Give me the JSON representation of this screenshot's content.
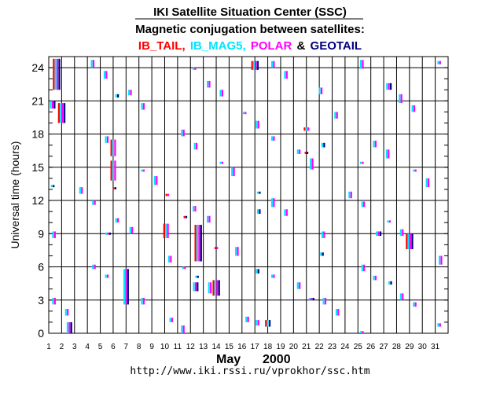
{
  "header": {
    "title": "IKI Satellite Situation Center (SSC)",
    "subtitle": "Magnetic conjugation between satellites:",
    "sat_red": "IB_TAIL,",
    "sat_cyan": "IB_MAG5,",
    "sat_magenta": "POLAR",
    "amp": "&",
    "sat_navy": "GEOTAIL"
  },
  "footer": {
    "month": "May",
    "year": "2000",
    "url": "http://www.iki.rssi.ru/vprokhor/ssc.htm"
  },
  "colors": {
    "IB_TAIL": "#ff0000",
    "IB_MAG5": "#00e5ff",
    "POLAR": "#ff00ff",
    "GEOTAIL": "#000080"
  },
  "chart_data": {
    "type": "scatter",
    "title": "Magnetic conjugation between satellites",
    "xlabel": "May 2000",
    "ylabel": "Universal time (hours)",
    "xlim": [
      1,
      32
    ],
    "ylim": [
      0,
      25
    ],
    "x_ticks": [
      1,
      2,
      3,
      4,
      5,
      6,
      7,
      8,
      9,
      10,
      11,
      12,
      13,
      14,
      15,
      16,
      17,
      18,
      19,
      20,
      21,
      22,
      23,
      24,
      25,
      26,
      27,
      28,
      29,
      30,
      31
    ],
    "y_ticks": [
      0,
      3,
      6,
      9,
      12,
      15,
      18,
      21,
      24
    ],
    "events": [
      {
        "day": 1.3,
        "start": 20.3,
        "end": 21.0,
        "sats": [
          "IB_MAG5",
          "POLAR",
          "GEOTAIL"
        ]
      },
      {
        "day": 1.4,
        "start": 8.6,
        "end": 9.2,
        "sats": [
          "IB_MAG5",
          "POLAR"
        ]
      },
      {
        "day": 1.4,
        "start": 2.6,
        "end": 3.2,
        "sats": [
          "IB_MAG5",
          "POLAR"
        ]
      },
      {
        "day": 1.3,
        "start": 13.2,
        "end": 13.4,
        "sats": [
          "IB_MAG5",
          "GEOTAIL"
        ]
      },
      {
        "day": 1.6,
        "start": 22.0,
        "end": 24.8,
        "sats": [
          "IB_TAIL",
          "IB_MAG5",
          "POLAR",
          "GEOTAIL"
        ]
      },
      {
        "day": 2.0,
        "start": 19.0,
        "end": 20.8,
        "sats": [
          "IB_TAIL",
          "IB_MAG5",
          "POLAR",
          "GEOTAIL"
        ]
      },
      {
        "day": 2.4,
        "start": 1.6,
        "end": 2.2,
        "sats": [
          "IB_MAG5",
          "POLAR"
        ]
      },
      {
        "day": 2.6,
        "start": 0.0,
        "end": 1.0,
        "sats": [
          "IB_MAG5",
          "POLAR",
          "GEOTAIL"
        ]
      },
      {
        "day": 3.5,
        "start": 12.6,
        "end": 13.2,
        "sats": [
          "IB_MAG5",
          "POLAR"
        ]
      },
      {
        "day": 4.4,
        "start": 24.0,
        "end": 24.7,
        "sats": [
          "IB_MAG5",
          "POLAR"
        ]
      },
      {
        "day": 4.5,
        "start": 11.6,
        "end": 12.0,
        "sats": [
          "IB_MAG5",
          "POLAR"
        ]
      },
      {
        "day": 4.5,
        "start": 5.8,
        "end": 6.2,
        "sats": [
          "IB_MAG5",
          "POLAR"
        ]
      },
      {
        "day": 5.4,
        "start": 23.0,
        "end": 23.7,
        "sats": [
          "IB_MAG5",
          "POLAR"
        ]
      },
      {
        "day": 5.5,
        "start": 17.2,
        "end": 17.8,
        "sats": [
          "IB_MAG5",
          "POLAR"
        ]
      },
      {
        "day": 5.6,
        "start": 8.9,
        "end": 9.1,
        "sats": [
          "IB_MAG5",
          "POLAR",
          "GEOTAIL"
        ]
      },
      {
        "day": 5.5,
        "start": 5.0,
        "end": 5.3,
        "sats": [
          "IB_MAG5",
          "POLAR"
        ]
      },
      {
        "day": 6.0,
        "start": 16.0,
        "end": 17.5,
        "sats": [
          "IB_TAIL",
          "IB_MAG5",
          "POLAR"
        ]
      },
      {
        "day": 6.0,
        "start": 13.8,
        "end": 15.6,
        "sats": [
          "IB_TAIL",
          "IB_MAG5",
          "POLAR"
        ]
      },
      {
        "day": 6.1,
        "start": 13.0,
        "end": 13.2,
        "sats": [
          "IB_TAIL",
          "GEOTAIL"
        ]
      },
      {
        "day": 6.3,
        "start": 21.3,
        "end": 21.6,
        "sats": [
          "IB_MAG5",
          "GEOTAIL"
        ]
      },
      {
        "day": 6.3,
        "start": 10.0,
        "end": 10.4,
        "sats": [
          "IB_MAG5",
          "POLAR"
        ]
      },
      {
        "day": 7.0,
        "start": 2.6,
        "end": 5.8,
        "sats": [
          "IB_MAG5",
          "POLAR",
          "GEOTAIL"
        ]
      },
      {
        "day": 7.3,
        "start": 21.5,
        "end": 22.0,
        "sats": [
          "IB_MAG5",
          "POLAR"
        ]
      },
      {
        "day": 7.4,
        "start": 9.0,
        "end": 9.6,
        "sats": [
          "IB_MAG5",
          "POLAR"
        ]
      },
      {
        "day": 8.3,
        "start": 20.2,
        "end": 20.8,
        "sats": [
          "IB_MAG5",
          "POLAR"
        ]
      },
      {
        "day": 8.3,
        "start": 14.6,
        "end": 14.8,
        "sats": [
          "IB_MAG5",
          "POLAR"
        ]
      },
      {
        "day": 8.3,
        "start": 2.6,
        "end": 3.2,
        "sats": [
          "IB_MAG5",
          "POLAR"
        ]
      },
      {
        "day": 9.3,
        "start": 13.4,
        "end": 14.2,
        "sats": [
          "IB_MAG5",
          "POLAR"
        ]
      },
      {
        "day": 10.1,
        "start": 8.6,
        "end": 9.9,
        "sats": [
          "IB_TAIL",
          "IB_MAG5",
          "POLAR"
        ]
      },
      {
        "day": 10.2,
        "start": 12.4,
        "end": 12.6,
        "sats": [
          "IB_TAIL",
          "POLAR"
        ]
      },
      {
        "day": 10.4,
        "start": 6.4,
        "end": 7.0,
        "sats": [
          "IB_MAG5",
          "POLAR"
        ]
      },
      {
        "day": 10.5,
        "start": 1.0,
        "end": 1.4,
        "sats": [
          "IB_MAG5",
          "POLAR"
        ]
      },
      {
        "day": 11.4,
        "start": 17.8,
        "end": 18.4,
        "sats": [
          "IB_MAG5",
          "POLAR"
        ]
      },
      {
        "day": 11.4,
        "start": 0.0,
        "end": 0.7,
        "sats": [
          "IB_MAG5",
          "POLAR"
        ]
      },
      {
        "day": 11.5,
        "start": 5.8,
        "end": 6.0,
        "sats": [
          "IB_MAG5",
          "POLAR"
        ]
      },
      {
        "day": 11.6,
        "start": 10.4,
        "end": 10.6,
        "sats": [
          "IB_TAIL",
          "GEOTAIL"
        ]
      },
      {
        "day": 12.4,
        "start": 16.6,
        "end": 17.2,
        "sats": [
          "IB_MAG5",
          "POLAR"
        ]
      },
      {
        "day": 12.3,
        "start": 11.0,
        "end": 11.5,
        "sats": [
          "IB_MAG5",
          "POLAR"
        ]
      },
      {
        "day": 12.6,
        "start": 6.5,
        "end": 9.8,
        "sats": [
          "IB_TAIL",
          "IB_MAG5",
          "POLAR",
          "GEOTAIL"
        ]
      },
      {
        "day": 12.4,
        "start": 3.8,
        "end": 4.6,
        "sats": [
          "IB_MAG5",
          "POLAR",
          "GEOTAIL"
        ]
      },
      {
        "day": 12.5,
        "start": 5.0,
        "end": 5.2,
        "sats": [
          "IB_MAG5",
          "GEOTAIL"
        ]
      },
      {
        "day": 12.3,
        "start": 23.8,
        "end": 24.0,
        "sats": [
          "IB_MAG5",
          "POLAR"
        ]
      },
      {
        "day": 13.4,
        "start": 22.2,
        "end": 22.8,
        "sats": [
          "IB_MAG5",
          "POLAR"
        ]
      },
      {
        "day": 13.4,
        "start": 10.0,
        "end": 10.6,
        "sats": [
          "IB_MAG5",
          "POLAR"
        ]
      },
      {
        "day": 13.5,
        "start": 3.6,
        "end": 4.6,
        "sats": [
          "IB_MAG5",
          "POLAR"
        ]
      },
      {
        "day": 14.0,
        "start": 3.4,
        "end": 4.8,
        "sats": [
          "IB_TAIL",
          "IB_MAG5",
          "POLAR",
          "GEOTAIL"
        ]
      },
      {
        "day": 14.0,
        "start": 7.6,
        "end": 7.8,
        "sats": [
          "IB_TAIL",
          "POLAR"
        ]
      },
      {
        "day": 14.4,
        "start": 21.4,
        "end": 22.0,
        "sats": [
          "IB_MAG5",
          "POLAR"
        ]
      },
      {
        "day": 14.4,
        "start": 15.3,
        "end": 15.5,
        "sats": [
          "IB_MAG5",
          "POLAR"
        ]
      },
      {
        "day": 15.3,
        "start": 14.2,
        "end": 15.0,
        "sats": [
          "IB_MAG5",
          "POLAR"
        ]
      },
      {
        "day": 15.6,
        "start": 7.0,
        "end": 7.8,
        "sats": [
          "IB_MAG5",
          "POLAR"
        ]
      },
      {
        "day": 16.2,
        "start": 19.8,
        "end": 20.0,
        "sats": [
          "IB_MAG5",
          "POLAR"
        ]
      },
      {
        "day": 16.4,
        "start": 1.0,
        "end": 1.5,
        "sats": [
          "IB_MAG5",
          "POLAR"
        ]
      },
      {
        "day": 17.0,
        "start": 23.8,
        "end": 24.6,
        "sats": [
          "IB_TAIL",
          "IB_MAG5",
          "POLAR",
          "GEOTAIL"
        ]
      },
      {
        "day": 17.2,
        "start": 18.5,
        "end": 19.2,
        "sats": [
          "IB_MAG5",
          "POLAR"
        ]
      },
      {
        "day": 17.3,
        "start": 12.6,
        "end": 12.8,
        "sats": [
          "IB_MAG5",
          "GEOTAIL"
        ]
      },
      {
        "day": 17.3,
        "start": 10.8,
        "end": 11.2,
        "sats": [
          "IB_MAG5",
          "GEOTAIL"
        ]
      },
      {
        "day": 17.2,
        "start": 5.4,
        "end": 5.8,
        "sats": [
          "IB_MAG5",
          "GEOTAIL"
        ]
      },
      {
        "day": 17.2,
        "start": 0.7,
        "end": 1.2,
        "sats": [
          "IB_MAG5",
          "POLAR"
        ]
      },
      {
        "day": 18.0,
        "start": 0.6,
        "end": 1.2,
        "sats": [
          "IB_TAIL",
          "IB_MAG5",
          "GEOTAIL"
        ]
      },
      {
        "day": 18.4,
        "start": 24.0,
        "end": 24.6,
        "sats": [
          "IB_MAG5",
          "POLAR"
        ]
      },
      {
        "day": 18.4,
        "start": 17.4,
        "end": 17.8,
        "sats": [
          "IB_MAG5",
          "POLAR"
        ]
      },
      {
        "day": 18.4,
        "start": 11.4,
        "end": 12.2,
        "sats": [
          "IB_MAG5",
          "POLAR"
        ]
      },
      {
        "day": 18.4,
        "start": 5.0,
        "end": 5.3,
        "sats": [
          "IB_MAG5",
          "POLAR"
        ]
      },
      {
        "day": 19.4,
        "start": 23.0,
        "end": 23.7,
        "sats": [
          "IB_MAG5",
          "POLAR"
        ]
      },
      {
        "day": 19.4,
        "start": 10.6,
        "end": 11.2,
        "sats": [
          "IB_MAG5",
          "POLAR"
        ]
      },
      {
        "day": 20.4,
        "start": 16.2,
        "end": 16.6,
        "sats": [
          "IB_MAG5",
          "POLAR"
        ]
      },
      {
        "day": 20.4,
        "start": 4.0,
        "end": 4.6,
        "sats": [
          "IB_MAG5",
          "POLAR"
        ]
      },
      {
        "day": 21.0,
        "start": 18.3,
        "end": 18.6,
        "sats": [
          "IB_TAIL",
          "IB_MAG5",
          "POLAR"
        ]
      },
      {
        "day": 21.0,
        "start": 16.2,
        "end": 16.4,
        "sats": [
          "IB_TAIL",
          "GEOTAIL"
        ]
      },
      {
        "day": 21.4,
        "start": 14.8,
        "end": 15.8,
        "sats": [
          "IB_MAG5",
          "POLAR"
        ]
      },
      {
        "day": 21.4,
        "start": 3.0,
        "end": 3.2,
        "sats": [
          "IB_MAG5",
          "POLAR",
          "GEOTAIL"
        ]
      },
      {
        "day": 22.1,
        "start": 21.6,
        "end": 22.2,
        "sats": [
          "IB_MAG5",
          "POLAR"
        ]
      },
      {
        "day": 22.3,
        "start": 16.8,
        "end": 17.2,
        "sats": [
          "IB_MAG5",
          "GEOTAIL"
        ]
      },
      {
        "day": 22.2,
        "start": 7.0,
        "end": 7.3,
        "sats": [
          "IB_MAG5",
          "GEOTAIL"
        ]
      },
      {
        "day": 22.3,
        "start": 8.6,
        "end": 9.2,
        "sats": [
          "IB_MAG5",
          "POLAR"
        ]
      },
      {
        "day": 22.4,
        "start": 2.6,
        "end": 3.2,
        "sats": [
          "IB_MAG5",
          "POLAR"
        ]
      },
      {
        "day": 23.3,
        "start": 19.4,
        "end": 20.0,
        "sats": [
          "IB_MAG5",
          "POLAR"
        ]
      },
      {
        "day": 23.4,
        "start": 1.6,
        "end": 2.2,
        "sats": [
          "IB_MAG5",
          "POLAR"
        ]
      },
      {
        "day": 24.4,
        "start": 12.2,
        "end": 12.8,
        "sats": [
          "IB_MAG5",
          "POLAR"
        ]
      },
      {
        "day": 25.3,
        "start": 23.9,
        "end": 24.7,
        "sats": [
          "IB_MAG5",
          "POLAR"
        ]
      },
      {
        "day": 25.3,
        "start": 15.3,
        "end": 15.5,
        "sats": [
          "IB_MAG5",
          "POLAR"
        ]
      },
      {
        "day": 25.4,
        "start": 11.4,
        "end": 11.9,
        "sats": [
          "IB_MAG5",
          "POLAR"
        ]
      },
      {
        "day": 25.4,
        "start": 5.6,
        "end": 6.2,
        "sats": [
          "IB_MAG5",
          "POLAR"
        ]
      },
      {
        "day": 25.3,
        "start": 0.0,
        "end": 0.2,
        "sats": [
          "IB_MAG5",
          "POLAR"
        ]
      },
      {
        "day": 26.3,
        "start": 16.8,
        "end": 17.4,
        "sats": [
          "IB_MAG5",
          "POLAR"
        ]
      },
      {
        "day": 26.6,
        "start": 8.8,
        "end": 9.2,
        "sats": [
          "IB_MAG5",
          "POLAR",
          "GEOTAIL"
        ]
      },
      {
        "day": 26.3,
        "start": 4.8,
        "end": 5.2,
        "sats": [
          "IB_MAG5",
          "POLAR"
        ]
      },
      {
        "day": 27.3,
        "start": 15.8,
        "end": 16.6,
        "sats": [
          "IB_MAG5",
          "POLAR"
        ]
      },
      {
        "day": 27.4,
        "start": 10.0,
        "end": 10.2,
        "sats": [
          "IB_MAG5",
          "POLAR"
        ]
      },
      {
        "day": 27.4,
        "start": 22.0,
        "end": 22.6,
        "sats": [
          "IB_MAG5",
          "POLAR",
          "GEOTAIL"
        ]
      },
      {
        "day": 27.5,
        "start": 4.4,
        "end": 4.7,
        "sats": [
          "IB_MAG5",
          "GEOTAIL"
        ]
      },
      {
        "day": 28.3,
        "start": 20.8,
        "end": 21.6,
        "sats": [
          "IB_MAG5",
          "POLAR"
        ]
      },
      {
        "day": 28.4,
        "start": 8.8,
        "end": 9.4,
        "sats": [
          "IB_MAG5",
          "POLAR"
        ]
      },
      {
        "day": 28.4,
        "start": 3.0,
        "end": 3.6,
        "sats": [
          "IB_MAG5",
          "POLAR"
        ]
      },
      {
        "day": 29.0,
        "start": 7.6,
        "end": 9.0,
        "sats": [
          "IB_TAIL",
          "IB_MAG5",
          "POLAR",
          "GEOTAIL"
        ]
      },
      {
        "day": 29.3,
        "start": 20.0,
        "end": 20.6,
        "sats": [
          "IB_MAG5",
          "POLAR"
        ]
      },
      {
        "day": 29.4,
        "start": 14.6,
        "end": 14.8,
        "sats": [
          "IB_MAG5",
          "POLAR"
        ]
      },
      {
        "day": 29.4,
        "start": 2.4,
        "end": 2.8,
        "sats": [
          "IB_MAG5",
          "POLAR"
        ]
      },
      {
        "day": 30.4,
        "start": 13.2,
        "end": 14.0,
        "sats": [
          "IB_MAG5",
          "POLAR"
        ]
      },
      {
        "day": 31.3,
        "start": 24.3,
        "end": 24.6,
        "sats": [
          "IB_MAG5",
          "POLAR"
        ]
      },
      {
        "day": 31.4,
        "start": 6.2,
        "end": 7.0,
        "sats": [
          "IB_MAG5",
          "POLAR"
        ]
      },
      {
        "day": 31.3,
        "start": 0.6,
        "end": 0.9,
        "sats": [
          "IB_MAG5",
          "POLAR"
        ]
      }
    ]
  }
}
